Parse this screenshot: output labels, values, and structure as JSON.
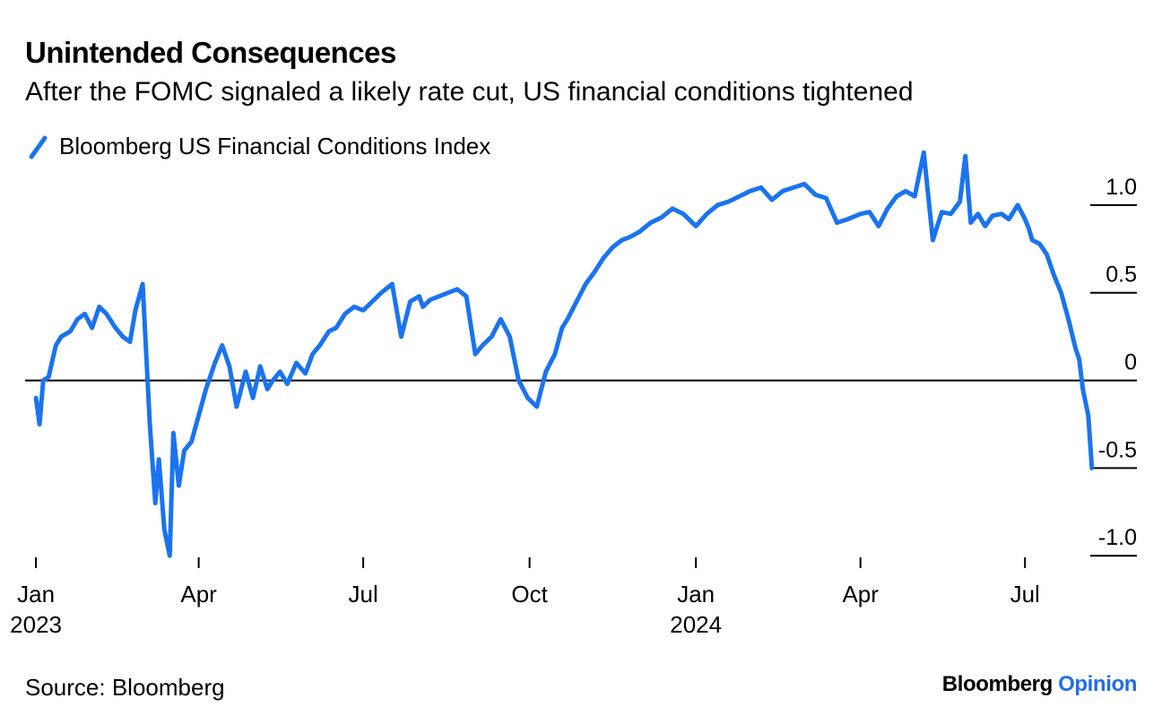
{
  "title": "Unintended Consequences",
  "subtitle": "After the FOMC signaled a likely rate cut, US financial conditions tightened",
  "source": "Source: Bloomberg",
  "brand": {
    "name": "Bloomberg",
    "accent": "Opinion"
  },
  "colors": {
    "series": "#1a73f0",
    "brand_accent": "#1f6fe5",
    "axis": "#000000"
  },
  "chart_data": {
    "type": "line",
    "xlim": [
      "2022-12-26",
      "2024-08-18"
    ],
    "ylim": [
      -1.05,
      1.25
    ],
    "yticks": [
      1.0,
      0.5,
      0,
      -0.5,
      -1.0
    ],
    "ytick_labels": [
      "1.0",
      "0.5",
      "0",
      "-0.5",
      "-1.0"
    ],
    "xticks": [
      {
        "date": "2023-01-01",
        "label": "Jan",
        "year": "2023"
      },
      {
        "date": "2023-04-01",
        "label": "Apr",
        "year": ""
      },
      {
        "date": "2023-07-01",
        "label": "Jul",
        "year": ""
      },
      {
        "date": "2023-10-01",
        "label": "Oct",
        "year": ""
      },
      {
        "date": "2024-01-01",
        "label": "Jan",
        "year": "2024"
      },
      {
        "date": "2024-04-01",
        "label": "Apr",
        "year": ""
      },
      {
        "date": "2024-07-01",
        "label": "Jul",
        "year": ""
      }
    ],
    "grid": false,
    "series": [
      {
        "name": "Bloomberg US Financial Conditions Index",
        "color": "#1a73f0",
        "x": [
          "2023-01-01",
          "2023-01-03",
          "2023-01-05",
          "2023-01-08",
          "2023-01-12",
          "2023-01-15",
          "2023-01-20",
          "2023-01-24",
          "2023-01-28",
          "2023-02-01",
          "2023-02-05",
          "2023-02-09",
          "2023-02-14",
          "2023-02-18",
          "2023-02-22",
          "2023-02-25",
          "2023-03-01",
          "2023-03-05",
          "2023-03-08",
          "2023-03-10",
          "2023-03-13",
          "2023-03-16",
          "2023-03-18",
          "2023-03-21",
          "2023-03-24",
          "2023-03-28",
          "2023-04-01",
          "2023-04-05",
          "2023-04-10",
          "2023-04-14",
          "2023-04-18",
          "2023-04-22",
          "2023-04-27",
          "2023-05-01",
          "2023-05-05",
          "2023-05-09",
          "2023-05-12",
          "2023-05-16",
          "2023-05-20",
          "2023-05-25",
          "2023-05-30",
          "2023-06-03",
          "2023-06-07",
          "2023-06-12",
          "2023-06-16",
          "2023-06-21",
          "2023-06-26",
          "2023-07-01",
          "2023-07-06",
          "2023-07-11",
          "2023-07-17",
          "2023-07-22",
          "2023-07-27",
          "2023-08-01",
          "2023-08-03",
          "2023-08-07",
          "2023-08-12",
          "2023-08-17",
          "2023-08-22",
          "2023-08-27",
          "2023-09-01",
          "2023-09-05",
          "2023-09-10",
          "2023-09-15",
          "2023-09-20",
          "2023-09-25",
          "2023-09-30",
          "2023-10-05",
          "2023-10-10",
          "2023-10-15",
          "2023-10-19",
          "2023-10-22",
          "2023-10-27",
          "2023-11-01",
          "2023-11-06",
          "2023-11-11",
          "2023-11-16",
          "2023-11-21",
          "2023-11-26",
          "2023-12-01",
          "2023-12-07",
          "2023-12-13",
          "2023-12-19",
          "2023-12-25",
          "2024-01-01",
          "2024-01-07",
          "2024-01-13",
          "2024-01-19",
          "2024-01-25",
          "2024-01-31",
          "2024-02-06",
          "2024-02-12",
          "2024-02-18",
          "2024-02-24",
          "2024-03-01",
          "2024-03-07",
          "2024-03-13",
          "2024-03-19",
          "2024-03-25",
          "2024-04-01",
          "2024-04-06",
          "2024-04-11",
          "2024-04-16",
          "2024-04-21",
          "2024-04-26",
          "2024-05-01",
          "2024-05-06",
          "2024-05-11",
          "2024-05-16",
          "2024-05-21",
          "2024-05-26",
          "2024-05-29",
          "2024-06-01",
          "2024-06-05",
          "2024-06-09",
          "2024-06-13",
          "2024-06-18",
          "2024-06-22",
          "2024-06-27",
          "2024-07-01",
          "2024-07-03",
          "2024-07-05",
          "2024-07-09",
          "2024-07-13",
          "2024-07-17",
          "2024-07-21",
          "2024-07-25",
          "2024-07-29",
          "2024-07-31",
          "2024-08-02",
          "2024-08-05",
          "2024-08-07"
        ],
        "y": [
          -0.1,
          -0.25,
          0.0,
          0.02,
          0.2,
          0.25,
          0.28,
          0.35,
          0.38,
          0.3,
          0.42,
          0.38,
          0.3,
          0.25,
          0.22,
          0.4,
          0.55,
          -0.25,
          -0.7,
          -0.45,
          -0.85,
          -1.0,
          -0.3,
          -0.6,
          -0.4,
          -0.35,
          -0.2,
          -0.05,
          0.1,
          0.2,
          0.08,
          -0.15,
          0.05,
          -0.1,
          0.08,
          -0.05,
          0.0,
          0.05,
          -0.02,
          0.1,
          0.04,
          0.15,
          0.2,
          0.28,
          0.3,
          0.38,
          0.42,
          0.4,
          0.45,
          0.5,
          0.55,
          0.25,
          0.45,
          0.48,
          0.42,
          0.46,
          0.48,
          0.5,
          0.52,
          0.48,
          0.15,
          0.2,
          0.25,
          0.35,
          0.25,
          0.0,
          -0.1,
          -0.15,
          0.05,
          0.15,
          0.3,
          0.35,
          0.45,
          0.55,
          0.62,
          0.7,
          0.76,
          0.8,
          0.82,
          0.85,
          0.9,
          0.93,
          0.98,
          0.95,
          0.88,
          0.95,
          1.0,
          1.02,
          1.05,
          1.08,
          1.1,
          1.03,
          1.08,
          1.1,
          1.12,
          1.06,
          1.04,
          0.9,
          0.92,
          0.95,
          0.96,
          0.88,
          0.98,
          1.05,
          1.08,
          1.05,
          1.3,
          0.8,
          0.96,
          0.95,
          1.02,
          1.28,
          0.9,
          0.95,
          0.88,
          0.94,
          0.95,
          0.92,
          1.0,
          0.92,
          0.87,
          0.8,
          0.78,
          0.72,
          0.6,
          0.5,
          0.35,
          0.18,
          0.12,
          -0.05,
          -0.2,
          -0.5
        ]
      }
    ]
  }
}
